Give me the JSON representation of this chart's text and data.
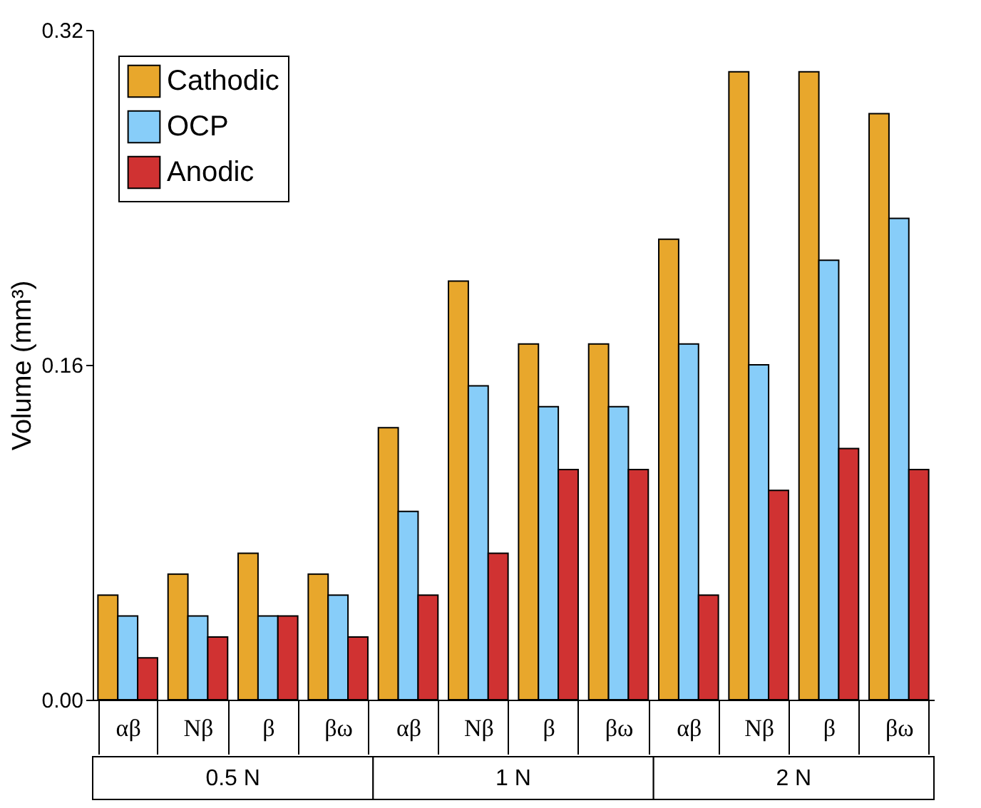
{
  "chart_data": {
    "type": "bar",
    "ylabel": "Volume (mm³)",
    "categories": [
      "αβ",
      "Nβ",
      "β",
      "βω",
      "αβ",
      "Nβ",
      "β",
      "βω",
      "αβ",
      "Nβ",
      "β",
      "βω"
    ],
    "series": [
      {
        "name": "Cathodic",
        "color": "#e8a72c",
        "values": [
          0.05,
          0.06,
          0.07,
          0.06,
          0.13,
          0.2,
          0.17,
          0.17,
          0.22,
          0.3,
          0.3,
          0.28
        ]
      },
      {
        "name": "OCP",
        "color": "#87cdf9",
        "values": [
          0.04,
          0.04,
          0.04,
          0.05,
          0.09,
          0.15,
          0.14,
          0.14,
          0.17,
          0.16,
          0.21,
          0.23
        ]
      },
      {
        "name": "Anodic",
        "color": "#d03232",
        "values": [
          0.02,
          0.03,
          0.04,
          0.03,
          0.05,
          0.07,
          0.11,
          0.11,
          0.05,
          0.1,
          0.12,
          0.11
        ]
      }
    ],
    "ylim": [
      0,
      0.32
    ],
    "yticks": [
      {
        "value": 0,
        "label": "0.00"
      },
      {
        "value": 0.16,
        "label": "0.16"
      },
      {
        "value": 0.32,
        "label": "0.32"
      }
    ],
    "annotations": [
      "0.5 N",
      "1 N",
      "2 N"
    ],
    "legend": "top left",
    "grid": false
  }
}
